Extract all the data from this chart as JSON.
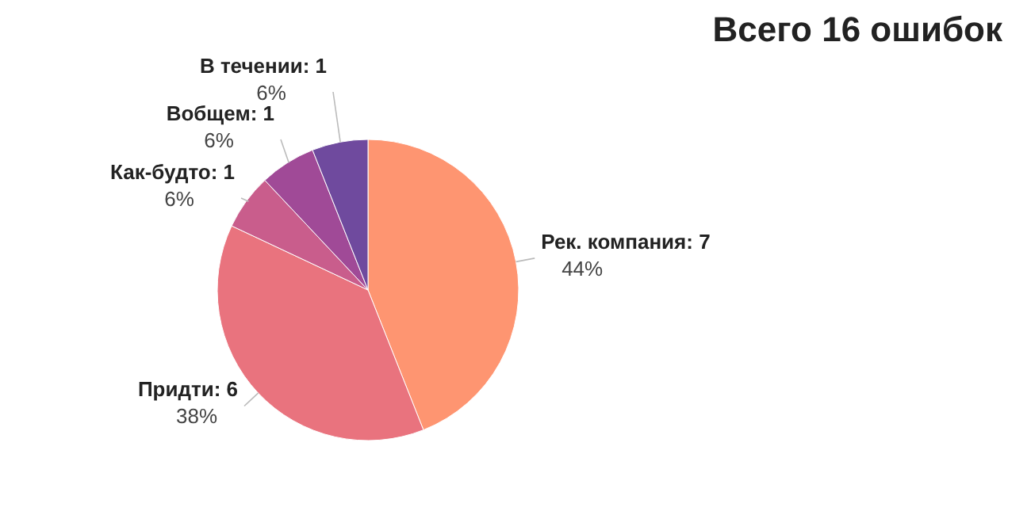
{
  "chart_data": {
    "type": "pie",
    "title": "Всего 16 ошибок",
    "categories": [
      "Рек. компания: 7",
      "Придти: 6",
      "Как-будто: 1",
      "Вобщем: 1",
      "В течении: 1"
    ],
    "values": [
      44,
      38,
      6,
      6,
      6
    ],
    "colors": [
      "#fe9571",
      "#e9737e",
      "#c95d8c",
      "#a04a97",
      "#6f4a9e"
    ],
    "value_labels": [
      "44%",
      "38%",
      "6%",
      "6%",
      "6%"
    ]
  }
}
